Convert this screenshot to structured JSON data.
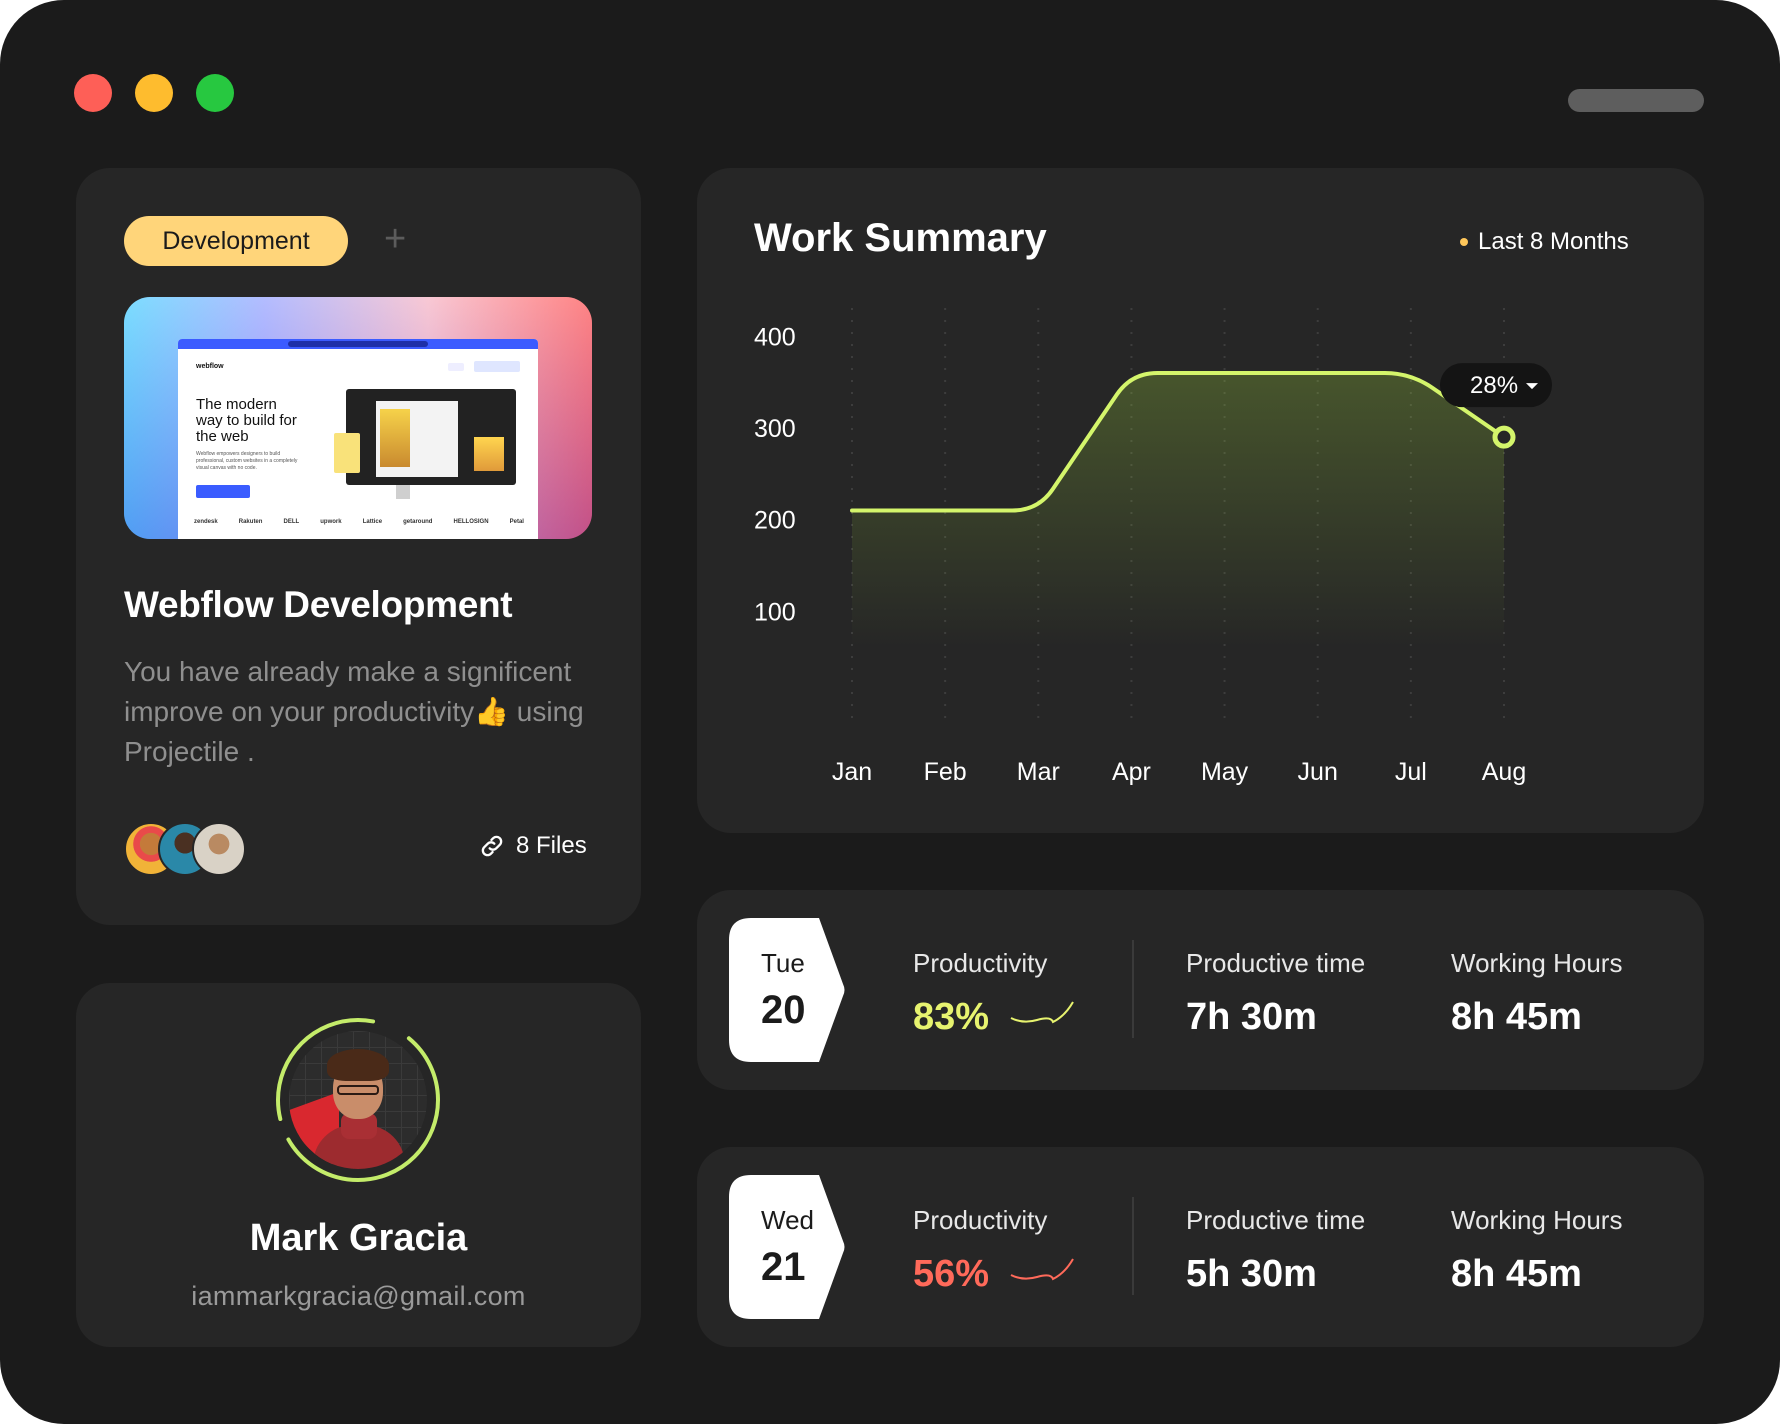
{
  "window": {
    "controls": [
      "close",
      "minimize",
      "maximize"
    ]
  },
  "project": {
    "tag": "Development",
    "add_icon": "plus-icon",
    "preview": {
      "nav_logo": "webflow",
      "headline": "The modern way to build for the web",
      "subtext": "Webflow empowers designers to build professional, custom websites in a completely visual canvas with no code.",
      "logos": [
        "zendesk",
        "Rakuten",
        "DELL",
        "upwork",
        "Lattice",
        "getaround",
        "HELLOSIGN",
        "Petal"
      ]
    },
    "title": "Webflow Development",
    "description": "You have already make a significent improve on your productivity👍 using Projectile .",
    "files": "8 Files"
  },
  "profile": {
    "name": "Mark Gracia",
    "email": "iammarkgracia@gmail.com"
  },
  "summary": {
    "title": "Work Summary",
    "period": "Last 8 Months",
    "tooltip": "28%"
  },
  "chart_data": {
    "type": "line",
    "title": "Work Summary",
    "categories": [
      "Jan",
      "Feb",
      "Mar",
      "Apr",
      "May",
      "Jun",
      "Jul",
      "Aug"
    ],
    "values": [
      210,
      210,
      210,
      360,
      360,
      360,
      360,
      290
    ],
    "yticks": [
      400,
      300,
      200,
      100
    ],
    "ylim": [
      60,
      420
    ],
    "highlight": {
      "category": "Aug",
      "label": "28%"
    },
    "colors": {
      "line": "#d4f56b",
      "grid": "#3d3d3d"
    }
  },
  "days": [
    {
      "weekday": "Tue",
      "date": "20",
      "productivity_label": "Productivity",
      "productivity": "83%",
      "productivity_color": "#e7f36f",
      "time_label": "Productive time",
      "time": "7h 30m",
      "hours_label": "Working Hours",
      "hours": "8h 45m"
    },
    {
      "weekday": "Wed",
      "date": "21",
      "productivity_label": "Productivity",
      "productivity": "56%",
      "productivity_color": "#ff6a5a",
      "time_label": "Productive time",
      "time": "5h 30m",
      "hours_label": "Working Hours",
      "hours": "8h 45m"
    }
  ]
}
